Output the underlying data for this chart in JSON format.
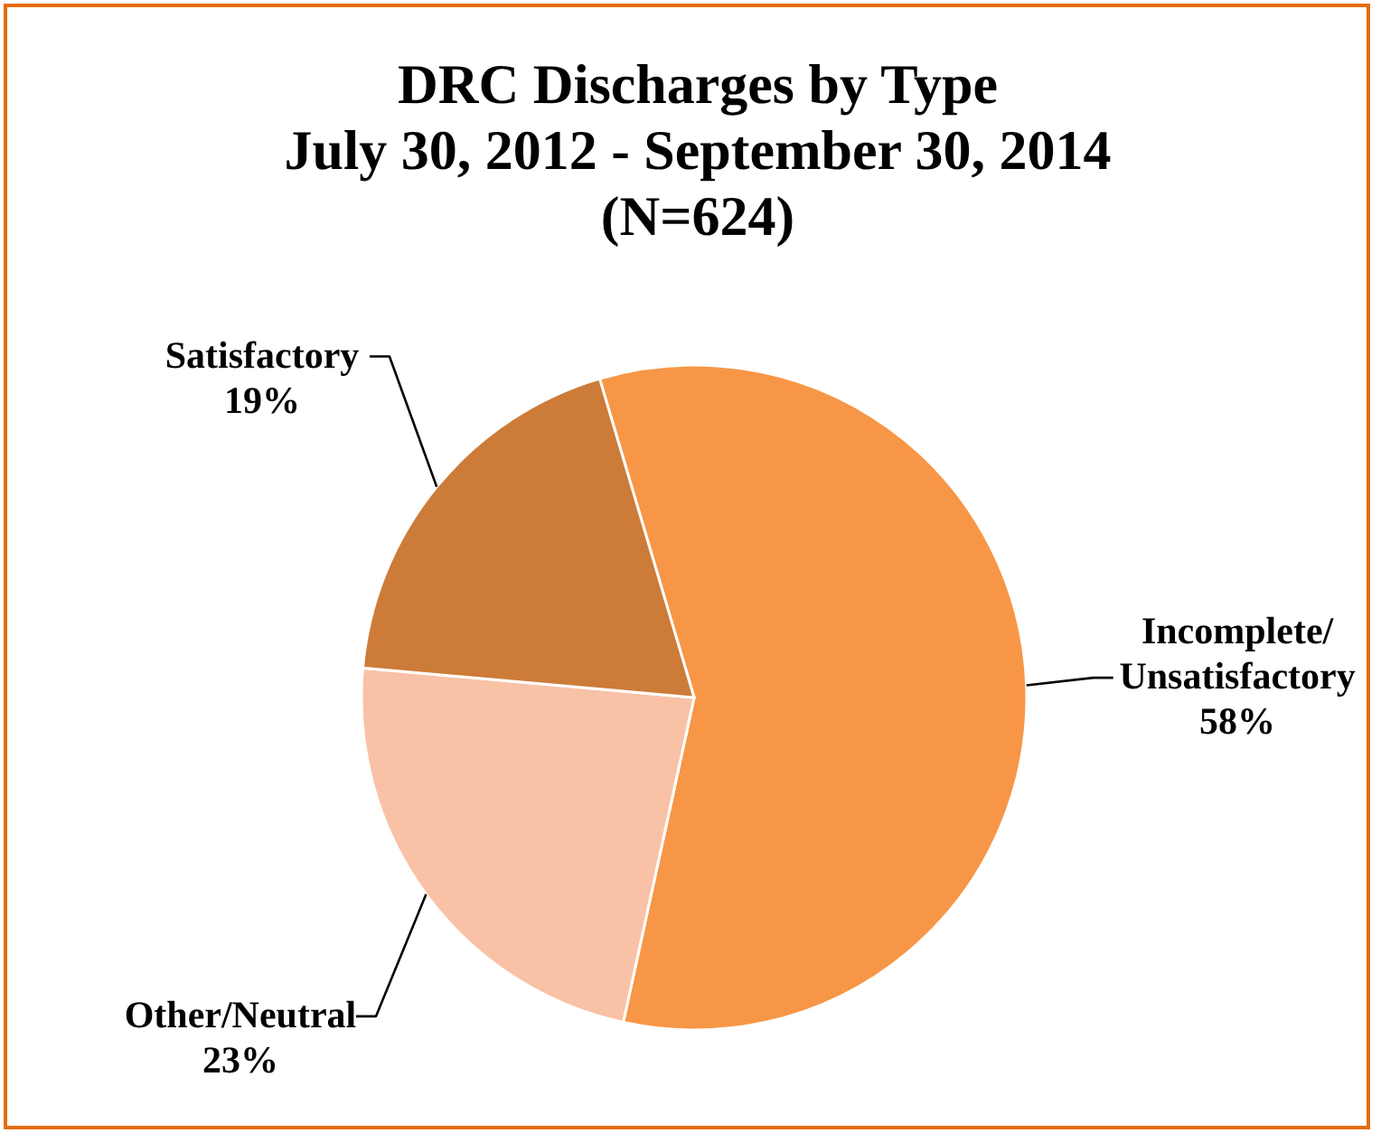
{
  "chart_data": {
    "type": "pie",
    "title": "DRC Discharges by Type\nJuly 30, 2012 - September 30, 2014\n(N=624)",
    "categories": [
      "Incomplete/Unsatisfactory",
      "Other/Neutral",
      "Satisfactory"
    ],
    "values": [
      58,
      23,
      19
    ],
    "colors": [
      "#f79646",
      "#f9c2a6",
      "#cd7b38"
    ],
    "value_labels": [
      "58%",
      "23%",
      "19%"
    ]
  }
}
